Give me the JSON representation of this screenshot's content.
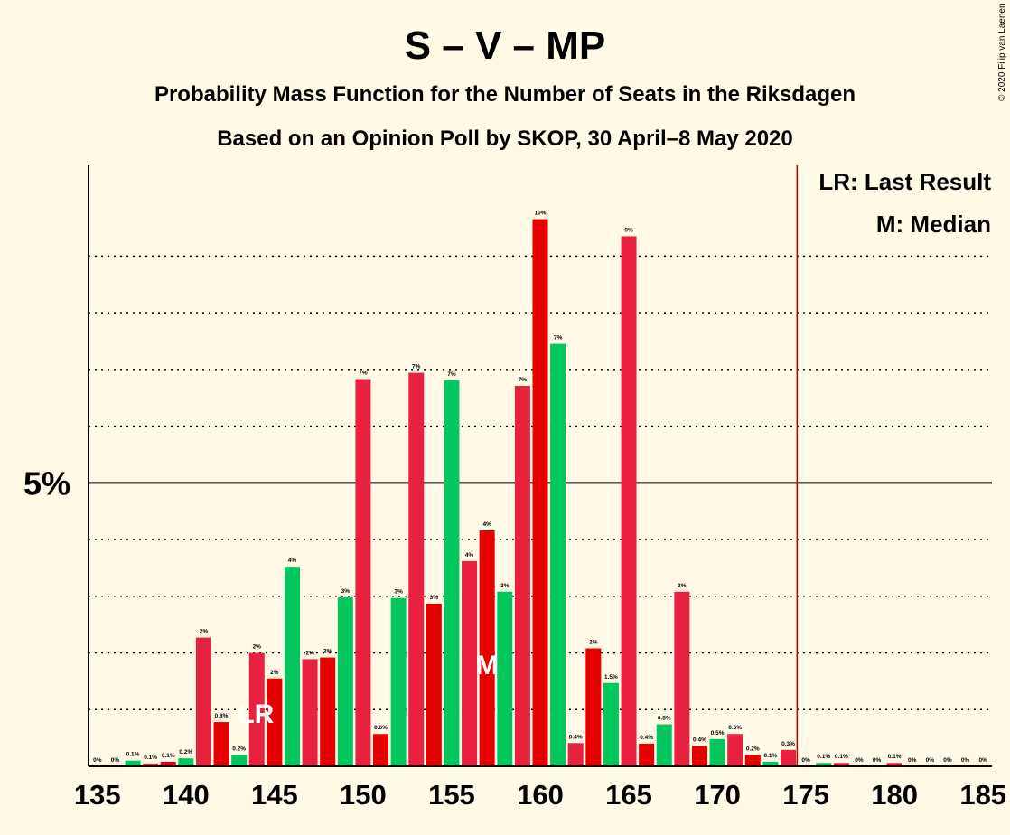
{
  "title": "S – V – MP",
  "subtitle1": "Probability Mass Function for the Number of Seats in the Riksdagen",
  "subtitle2": "Based on an Opinion Poll by SKOP, 30 April–8 May 2020",
  "copyright": "© 2020 Filip van Laenen",
  "legend": {
    "last_result": "LR: Last Result",
    "median": "M: Median"
  },
  "markers": {
    "last_result": "LR",
    "median": "M"
  },
  "colors": {
    "background": "#fff9e5",
    "red_a": "#e8213f",
    "red_b": "#e60000",
    "green": "#03c65d",
    "majority_line": "#c00000"
  },
  "chart_data": {
    "type": "bar",
    "xlabel": "",
    "ylabel": "",
    "xlim": [
      135,
      185
    ],
    "ylim": [
      0,
      10.6
    ],
    "x_ticks": [
      "135",
      "140",
      "145",
      "150",
      "155",
      "160",
      "165",
      "170",
      "175",
      "180",
      "185"
    ],
    "y_ticks": [
      {
        "value": 5,
        "label": "5%"
      }
    ],
    "gridlines": [
      1,
      2,
      3,
      4,
      5,
      6,
      7,
      8,
      9
    ],
    "majority_line_x": 175,
    "last_result_seat": 144,
    "median_seat": 157,
    "bars": [
      {
        "seat": 135,
        "value": 0.0,
        "label": "0%",
        "color": "red_b"
      },
      {
        "seat": 136,
        "value": 0.0,
        "label": "0%",
        "color": "red_a"
      },
      {
        "seat": 137,
        "value": 0.1,
        "label": "0.1%",
        "color": "green"
      },
      {
        "seat": 138,
        "value": 0.05,
        "label": "0.1%",
        "color": "red_a"
      },
      {
        "seat": 139,
        "value": 0.08,
        "label": "0.1%",
        "color": "red_b"
      },
      {
        "seat": 140,
        "value": 0.14,
        "label": "0.2%",
        "color": "green"
      },
      {
        "seat": 141,
        "value": 2.27,
        "label": "2%",
        "color": "red_a"
      },
      {
        "seat": 142,
        "value": 0.78,
        "label": "0.8%",
        "color": "red_b"
      },
      {
        "seat": 143,
        "value": 0.2,
        "label": "0.2%",
        "color": "green"
      },
      {
        "seat": 144,
        "value": 2.0,
        "label": "2%",
        "color": "red_a"
      },
      {
        "seat": 145,
        "value": 1.55,
        "label": "2%",
        "color": "red_b"
      },
      {
        "seat": 146,
        "value": 3.52,
        "label": "4%",
        "color": "green"
      },
      {
        "seat": 147,
        "value": 1.89,
        "label": "2%",
        "color": "red_a"
      },
      {
        "seat": 148,
        "value": 1.92,
        "label": "2%",
        "color": "red_b"
      },
      {
        "seat": 149,
        "value": 2.98,
        "label": "3%",
        "color": "green"
      },
      {
        "seat": 150,
        "value": 6.83,
        "label": "7%",
        "color": "red_a"
      },
      {
        "seat": 151,
        "value": 0.57,
        "label": "0.6%",
        "color": "red_b"
      },
      {
        "seat": 152,
        "value": 2.97,
        "label": "3%",
        "color": "green"
      },
      {
        "seat": 153,
        "value": 6.94,
        "label": "7%",
        "color": "red_a"
      },
      {
        "seat": 154,
        "value": 2.87,
        "label": "3%",
        "color": "red_b"
      },
      {
        "seat": 155,
        "value": 6.81,
        "label": "7%",
        "color": "green"
      },
      {
        "seat": 156,
        "value": 3.62,
        "label": "4%",
        "color": "red_a"
      },
      {
        "seat": 157,
        "value": 4.16,
        "label": "4%",
        "color": "red_b"
      },
      {
        "seat": 158,
        "value": 3.08,
        "label": "3%",
        "color": "green"
      },
      {
        "seat": 159,
        "value": 6.71,
        "label": "7%",
        "color": "red_a"
      },
      {
        "seat": 160,
        "value": 9.65,
        "label": "10%",
        "color": "red_b"
      },
      {
        "seat": 161,
        "value": 7.45,
        "label": "7%",
        "color": "green"
      },
      {
        "seat": 162,
        "value": 0.41,
        "label": "0.4%",
        "color": "red_a"
      },
      {
        "seat": 163,
        "value": 2.08,
        "label": "2%",
        "color": "red_b"
      },
      {
        "seat": 164,
        "value": 1.47,
        "label": "1.5%",
        "color": "green"
      },
      {
        "seat": 165,
        "value": 9.35,
        "label": "9%",
        "color": "red_a"
      },
      {
        "seat": 166,
        "value": 0.4,
        "label": "0.4%",
        "color": "red_b"
      },
      {
        "seat": 167,
        "value": 0.74,
        "label": "0.8%",
        "color": "green"
      },
      {
        "seat": 168,
        "value": 3.08,
        "label": "3%",
        "color": "red_a"
      },
      {
        "seat": 169,
        "value": 0.36,
        "label": "0.4%",
        "color": "red_b"
      },
      {
        "seat": 170,
        "value": 0.48,
        "label": "0.5%",
        "color": "green"
      },
      {
        "seat": 171,
        "value": 0.57,
        "label": "0.6%",
        "color": "red_a"
      },
      {
        "seat": 172,
        "value": 0.2,
        "label": "0.2%",
        "color": "red_b"
      },
      {
        "seat": 173,
        "value": 0.08,
        "label": "0.1%",
        "color": "green"
      },
      {
        "seat": 174,
        "value": 0.29,
        "label": "0.3%",
        "color": "red_a"
      },
      {
        "seat": 175,
        "value": 0.0,
        "label": "0%",
        "color": "red_b"
      },
      {
        "seat": 176,
        "value": 0.06,
        "label": "0.1%",
        "color": "green"
      },
      {
        "seat": 177,
        "value": 0.06,
        "label": "0.1%",
        "color": "red_a"
      },
      {
        "seat": 178,
        "value": 0.0,
        "label": "0%",
        "color": "red_b"
      },
      {
        "seat": 179,
        "value": 0.0,
        "label": "0%",
        "color": "green"
      },
      {
        "seat": 180,
        "value": 0.06,
        "label": "0.1%",
        "color": "red_a"
      },
      {
        "seat": 181,
        "value": 0.0,
        "label": "0%",
        "color": "red_b"
      },
      {
        "seat": 182,
        "value": 0.0,
        "label": "0%",
        "color": "green"
      },
      {
        "seat": 183,
        "value": 0.0,
        "label": "0%",
        "color": "red_a"
      },
      {
        "seat": 184,
        "value": 0.0,
        "label": "0%",
        "color": "red_b"
      },
      {
        "seat": 185,
        "value": 0.0,
        "label": "0%",
        "color": "green"
      }
    ]
  }
}
